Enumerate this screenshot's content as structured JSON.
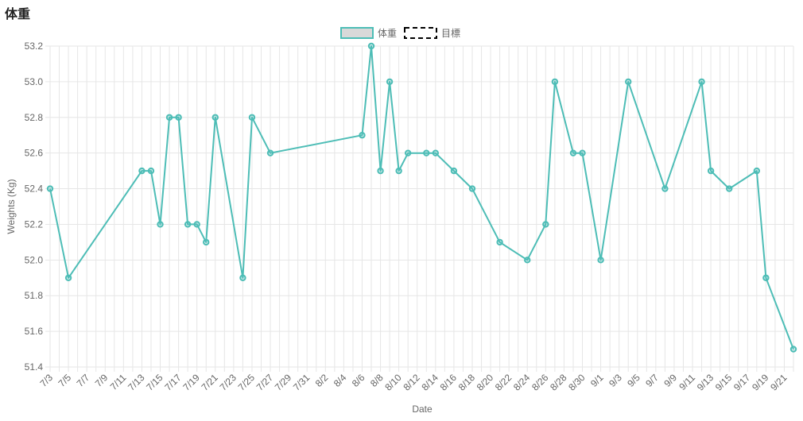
{
  "page": {
    "title": "体重"
  },
  "colors": {
    "series": "#4dbdb6",
    "series_fill": "#d9d9d9",
    "grid": "#e6e6e6",
    "tick": "#666666"
  },
  "chart_data": {
    "type": "line",
    "xlabel": "Date",
    "ylabel": "Weights (Kg)",
    "ylim": [
      51.4,
      53.2
    ],
    "y_ticks": [
      "53.2",
      "53.0",
      "52.8",
      "52.6",
      "52.4",
      "52.2",
      "52.0",
      "51.8",
      "51.6",
      "51.4"
    ],
    "x_start": "7/3",
    "x_end": "9/22",
    "x_ticks": [
      "7/3",
      "7/5",
      "7/7",
      "7/9",
      "7/11",
      "7/13",
      "7/15",
      "7/17",
      "7/19",
      "7/21",
      "7/23",
      "7/25",
      "7/27",
      "7/29",
      "7/31",
      "8/2",
      "8/4",
      "8/6",
      "8/8",
      "8/10",
      "8/12",
      "8/14",
      "8/16",
      "8/18",
      "8/20",
      "8/22",
      "8/24",
      "8/26",
      "8/28",
      "8/30",
      "9/1",
      "9/3",
      "9/5",
      "9/7",
      "9/9",
      "9/11",
      "9/13",
      "9/15",
      "9/17",
      "9/19",
      "9/21"
    ],
    "legend": [
      {
        "name": "体重",
        "style": "solid"
      },
      {
        "name": "目標",
        "style": "dashed"
      }
    ],
    "series": [
      {
        "name": "体重",
        "points": [
          {
            "x": "7/3",
            "y": 52.4
          },
          {
            "x": "7/5",
            "y": 51.9
          },
          {
            "x": "7/13",
            "y": 52.5
          },
          {
            "x": "7/14",
            "y": 52.5
          },
          {
            "x": "7/15",
            "y": 52.2
          },
          {
            "x": "7/16",
            "y": 52.8
          },
          {
            "x": "7/17",
            "y": 52.8
          },
          {
            "x": "7/18",
            "y": 52.2
          },
          {
            "x": "7/19",
            "y": 52.2
          },
          {
            "x": "7/20",
            "y": 52.1
          },
          {
            "x": "7/21",
            "y": 52.8
          },
          {
            "x": "7/24",
            "y": 51.9
          },
          {
            "x": "7/25",
            "y": 52.8
          },
          {
            "x": "7/27",
            "y": 52.6
          },
          {
            "x": "8/6",
            "y": 52.7
          },
          {
            "x": "8/7",
            "y": 53.2
          },
          {
            "x": "8/8",
            "y": 52.5
          },
          {
            "x": "8/9",
            "y": 53.0
          },
          {
            "x": "8/10",
            "y": 52.5
          },
          {
            "x": "8/11",
            "y": 52.6
          },
          {
            "x": "8/13",
            "y": 52.6
          },
          {
            "x": "8/14",
            "y": 52.6
          },
          {
            "x": "8/16",
            "y": 52.5
          },
          {
            "x": "8/18",
            "y": 52.4
          },
          {
            "x": "8/21",
            "y": 52.1
          },
          {
            "x": "8/24",
            "y": 52.0
          },
          {
            "x": "8/26",
            "y": 52.2
          },
          {
            "x": "8/27",
            "y": 53.0
          },
          {
            "x": "8/29",
            "y": 52.6
          },
          {
            "x": "8/30",
            "y": 52.6
          },
          {
            "x": "9/1",
            "y": 52.0
          },
          {
            "x": "9/4",
            "y": 53.0
          },
          {
            "x": "9/8",
            "y": 52.4
          },
          {
            "x": "9/12",
            "y": 53.0
          },
          {
            "x": "9/13",
            "y": 52.5
          },
          {
            "x": "9/15",
            "y": 52.4
          },
          {
            "x": "9/18",
            "y": 52.5
          },
          {
            "x": "9/19",
            "y": 51.9
          },
          {
            "x": "9/22",
            "y": 51.5
          }
        ]
      },
      {
        "name": "目標",
        "points": []
      }
    ]
  }
}
